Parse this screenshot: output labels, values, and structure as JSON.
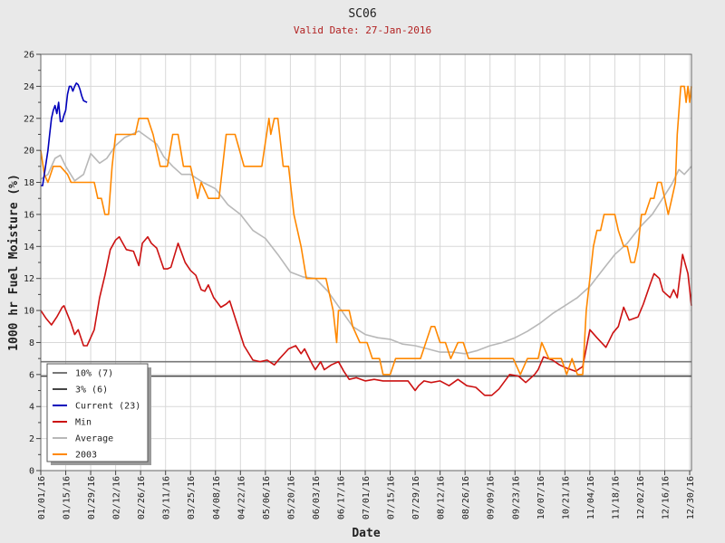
{
  "chart_data": {
    "type": "line",
    "title": "SC06",
    "subtitle": "Valid Date: 27-Jan-2016",
    "xlabel": "Date",
    "ylabel": "1000 hr Fuel Moisture (%)",
    "ylim": [
      0,
      26
    ],
    "yticks": [
      0,
      2,
      4,
      6,
      8,
      10,
      12,
      14,
      16,
      18,
      20,
      22,
      24,
      26
    ],
    "xlim": [
      "01/01/16",
      "12/31/16"
    ],
    "xticks": [
      "01/01/16",
      "01/15/16",
      "01/29/16",
      "02/12/16",
      "02/26/16",
      "03/11/16",
      "03/25/16",
      "04/08/16",
      "04/22/16",
      "05/06/16",
      "05/20/16",
      "06/03/16",
      "06/17/16",
      "07/01/16",
      "07/15/16",
      "07/29/16",
      "08/12/16",
      "08/26/16",
      "09/09/16",
      "09/23/16",
      "10/07/16",
      "10/21/16",
      "11/04/16",
      "11/18/16",
      "12/02/16",
      "12/16/16",
      "12/30/16"
    ],
    "grid": true,
    "legend_position": "bottom-left",
    "thresholds": [
      {
        "name": "10% (7)",
        "value": 6.8,
        "color": "#777777"
      },
      {
        "name": "3% (6)",
        "value": 5.9,
        "color": "#444444"
      }
    ],
    "series": [
      {
        "name": "Current (23)",
        "color": "#0000bb",
        "x": [
          "01/01/16",
          "01/02/16",
          "01/03/16",
          "01/05/16",
          "01/06/16",
          "01/07/16",
          "01/08/16",
          "01/09/16",
          "01/10/16",
          "01/11/16",
          "01/12/16",
          "01/13/16",
          "01/14/16",
          "01/15/16",
          "01/16/16",
          "01/17/16",
          "01/18/16",
          "01/19/16",
          "01/20/16",
          "01/21/16",
          "01/22/16",
          "01/23/16",
          "01/24/16",
          "01/25/16",
          "01/27/16"
        ],
        "y": [
          17.8,
          17.8,
          18.5,
          20.0,
          21.0,
          22.0,
          22.5,
          22.8,
          22.3,
          23.0,
          21.8,
          21.8,
          22.2,
          22.5,
          23.5,
          24.0,
          24.0,
          23.7,
          24.0,
          24.2,
          24.1,
          23.8,
          23.4,
          23.1,
          23.0
        ]
      },
      {
        "name": "Min",
        "color": "#cc1111",
        "x": [
          "01/01/16",
          "01/04/16",
          "01/07/16",
          "01/10/16",
          "01/13/16",
          "01/14/16",
          "01/18/16",
          "01/20/16",
          "01/22/16",
          "01/25/16",
          "01/27/16",
          "01/31/16",
          "02/03/16",
          "02/06/16",
          "02/09/16",
          "02/12/16",
          "02/14/16",
          "02/18/16",
          "02/22/16",
          "02/25/16",
          "02/27/16",
          "03/01/16",
          "03/03/16",
          "03/06/16",
          "03/10/16",
          "03/12/16",
          "03/14/16",
          "03/18/16",
          "03/22/16",
          "03/25/16",
          "03/28/16",
          "03/31/16",
          "04/02/16",
          "04/04/16",
          "04/07/16",
          "04/11/16",
          "04/14/16",
          "04/16/16",
          "04/20/16",
          "04/24/16",
          "04/29/16",
          "05/03/16",
          "05/07/16",
          "05/11/16",
          "05/14/16",
          "05/19/16",
          "05/23/16",
          "05/26/16",
          "05/28/16",
          "06/01/16",
          "06/03/16",
          "06/06/16",
          "06/08/16",
          "06/12/16",
          "06/16/16",
          "06/19/16",
          "06/22/16",
          "06/26/16",
          "07/01/16",
          "07/06/16",
          "07/11/16",
          "07/15/16",
          "07/20/16",
          "07/25/16",
          "07/29/16",
          "07/31/16",
          "08/03/16",
          "08/07/16",
          "08/12/16",
          "08/17/16",
          "08/22/16",
          "08/27/16",
          "09/01/16",
          "09/06/16",
          "09/10/16",
          "09/14/16",
          "09/20/16",
          "09/25/16",
          "09/29/16",
          "10/04/16",
          "10/06/16",
          "10/09/16",
          "10/14/16",
          "10/18/16",
          "10/22/16",
          "10/27/16",
          "10/31/16",
          "11/04/16",
          "11/08/16",
          "11/13/16",
          "11/17/16",
          "11/20/16",
          "11/23/16",
          "11/26/16",
          "12/01/16",
          "12/04/16",
          "12/08/16",
          "12/10/16",
          "12/13/16",
          "12/15/16",
          "12/19/16",
          "12/21/16",
          "12/23/16",
          "12/26/16",
          "12/29/16",
          "12/31/16"
        ],
        "y": [
          10.0,
          9.5,
          9.1,
          9.6,
          10.2,
          10.3,
          9.2,
          8.5,
          8.8,
          7.8,
          7.8,
          8.8,
          10.8,
          12.2,
          13.8,
          14.4,
          14.6,
          13.8,
          13.7,
          12.8,
          14.2,
          14.6,
          14.2,
          13.9,
          12.6,
          12.6,
          12.7,
          14.2,
          13.0,
          12.5,
          12.2,
          11.3,
          11.2,
          11.6,
          10.8,
          10.2,
          10.4,
          10.6,
          9.2,
          7.8,
          6.9,
          6.8,
          6.9,
          6.6,
          7.0,
          7.6,
          7.8,
          7.3,
          7.6,
          6.7,
          6.3,
          6.8,
          6.3,
          6.6,
          6.8,
          6.2,
          5.7,
          5.8,
          5.6,
          5.7,
          5.6,
          5.6,
          5.6,
          5.6,
          5.0,
          5.3,
          5.6,
          5.5,
          5.6,
          5.3,
          5.7,
          5.3,
          5.2,
          4.7,
          4.7,
          5.1,
          6.0,
          5.9,
          5.5,
          6.0,
          6.3,
          7.1,
          6.9,
          6.6,
          6.4,
          6.2,
          6.5,
          8.8,
          8.3,
          7.7,
          8.6,
          9.0,
          10.2,
          9.4,
          9.6,
          10.4,
          11.7,
          12.3,
          12.0,
          11.2,
          10.8,
          11.3,
          10.8,
          13.5,
          12.3,
          10.3
        ]
      },
      {
        "name": "Average",
        "color": "#b8b8b8",
        "x": [
          "01/01/16",
          "01/05/16",
          "01/09/16",
          "01/12/16",
          "01/15/16",
          "01/20/16",
          "01/25/16",
          "01/29/16",
          "02/03/16",
          "02/07/16",
          "02/12/16",
          "02/17/16",
          "02/21/16",
          "02/25/16",
          "03/01/16",
          "03/06/16",
          "03/10/16",
          "03/15/16",
          "03/20/16",
          "03/25/16",
          "04/01/16",
          "04/08/16",
          "04/15/16",
          "04/22/16",
          "04/29/16",
          "05/06/16",
          "05/13/16",
          "05/20/16",
          "05/27/16",
          "06/03/16",
          "06/10/16",
          "06/17/16",
          "06/24/16",
          "07/01/16",
          "07/08/16",
          "07/15/16",
          "07/22/16",
          "07/29/16",
          "08/05/16",
          "08/12/16",
          "08/19/16",
          "08/26/16",
          "09/02/16",
          "09/09/16",
          "09/16/16",
          "09/23/16",
          "09/30/16",
          "10/07/16",
          "10/14/16",
          "10/21/16",
          "10/28/16",
          "11/04/16",
          "11/11/16",
          "11/18/16",
          "11/25/16",
          "12/02/16",
          "12/09/16",
          "12/16/16",
          "12/20/16",
          "12/24/16",
          "12/27/16",
          "12/31/16"
        ],
        "y": [
          18.2,
          18.5,
          19.5,
          19.7,
          19.0,
          18.1,
          18.5,
          19.8,
          19.2,
          19.5,
          20.3,
          20.8,
          21.0,
          21.2,
          20.8,
          20.4,
          19.6,
          19.0,
          18.5,
          18.5,
          18.0,
          17.6,
          16.6,
          16.0,
          15.0,
          14.5,
          13.5,
          12.4,
          12.1,
          12.0,
          11.2,
          10.1,
          9.0,
          8.5,
          8.3,
          8.2,
          7.9,
          7.8,
          7.6,
          7.4,
          7.4,
          7.3,
          7.5,
          7.8,
          8.0,
          8.3,
          8.7,
          9.2,
          9.8,
          10.3,
          10.8,
          11.5,
          12.5,
          13.5,
          14.2,
          15.2,
          16.0,
          17.2,
          17.9,
          18.8,
          18.5,
          19.0
        ]
      },
      {
        "name": "2003",
        "color": "#ff8800",
        "x": [
          "01/01/16",
          "01/03/16",
          "01/05/16",
          "01/08/16",
          "01/12/16",
          "01/16/16",
          "01/18/16",
          "01/22/16",
          "01/27/16",
          "01/31/16",
          "02/02/16",
          "02/04/16",
          "02/06/16",
          "02/08/16",
          "02/10/16",
          "02/12/16",
          "02/15/16",
          "02/17/16",
          "02/19/16",
          "02/23/16",
          "02/25/16",
          "03/01/16",
          "03/04/16",
          "03/08/16",
          "03/12/16",
          "03/15/16",
          "03/18/16",
          "03/21/16",
          "03/25/16",
          "03/27/16",
          "03/29/16",
          "03/31/16",
          "04/04/16",
          "04/07/16",
          "04/10/16",
          "04/14/16",
          "04/19/16",
          "04/24/16",
          "04/30/16",
          "05/04/16",
          "05/08/16",
          "05/09/16",
          "05/11/16",
          "05/13/16",
          "05/16/16",
          "05/19/16",
          "05/22/16",
          "05/26/16",
          "05/29/16",
          "06/02/16",
          "06/09/16",
          "06/13/16",
          "06/15/16",
          "06/16/16",
          "06/18/16",
          "06/22/16",
          "06/24/16",
          "06/28/16",
          "06/30/16",
          "07/02/16",
          "07/05/16",
          "07/09/16",
          "07/11/16",
          "07/15/16",
          "07/18/16",
          "07/25/16",
          "08/01/16",
          "08/04/16",
          "08/07/16",
          "08/09/16",
          "08/12/16",
          "08/15/16",
          "08/18/16",
          "08/22/16",
          "08/25/16",
          "08/28/16",
          "09/01/16",
          "09/05/16",
          "09/12/16",
          "09/18/16",
          "09/22/16",
          "09/26/16",
          "09/30/16",
          "10/04/16",
          "10/06/16",
          "10/08/16",
          "10/12/16",
          "10/16/16",
          "10/19/16",
          "10/22/16",
          "10/25/16",
          "10/28/16",
          "10/31/16",
          "11/02/16",
          "11/04/16",
          "11/06/16",
          "11/08/16",
          "11/10/16",
          "11/12/16",
          "11/14/16",
          "11/18/16",
          "11/20/16",
          "11/23/16",
          "11/25/16",
          "11/27/16",
          "11/29/16",
          "12/01/16",
          "12/03/16",
          "12/05/16",
          "12/08/16",
          "12/10/16",
          "12/12/16",
          "12/14/16",
          "12/16/16",
          "12/18/16",
          "12/20/16",
          "12/22/16",
          "12/23/16",
          "12/25/16",
          "12/27/16",
          "12/28/16",
          "12/29/16",
          "12/30/16",
          "12/31/16"
        ],
        "y": [
          20.0,
          18.5,
          18.0,
          19.0,
          19.0,
          18.5,
          18.0,
          18.0,
          18.0,
          18.0,
          17.0,
          17.0,
          16.0,
          16.0,
          19.0,
          21.0,
          21.0,
          21.0,
          21.0,
          21.0,
          22.0,
          22.0,
          21.0,
          19.0,
          19.0,
          21.0,
          21.0,
          19.0,
          19.0,
          18.0,
          17.0,
          18.0,
          17.0,
          17.0,
          17.0,
          21.0,
          21.0,
          19.0,
          19.0,
          19.0,
          22.0,
          21.0,
          22.0,
          22.0,
          19.0,
          19.0,
          16.0,
          14.0,
          12.0,
          12.0,
          12.0,
          10.0,
          8.0,
          10.0,
          10.0,
          10.0,
          9.0,
          8.0,
          8.0,
          8.0,
          7.0,
          7.0,
          6.0,
          6.0,
          7.0,
          7.0,
          7.0,
          8.0,
          9.0,
          9.0,
          8.0,
          8.0,
          7.0,
          8.0,
          8.0,
          7.0,
          7.0,
          7.0,
          7.0,
          7.0,
          7.0,
          6.0,
          7.0,
          7.0,
          7.0,
          8.0,
          7.0,
          7.0,
          7.0,
          6.0,
          7.0,
          6.0,
          6.0,
          10.0,
          12.0,
          14.0,
          15.0,
          15.0,
          16.0,
          16.0,
          16.0,
          15.0,
          14.0,
          14.0,
          13.0,
          13.0,
          14.0,
          16.0,
          16.0,
          17.0,
          17.0,
          18.0,
          18.0,
          17.0,
          16.0,
          17.0,
          18.0,
          21.0,
          24.0,
          24.0,
          23.0,
          24.0,
          23.0,
          24.0
        ]
      }
    ]
  }
}
